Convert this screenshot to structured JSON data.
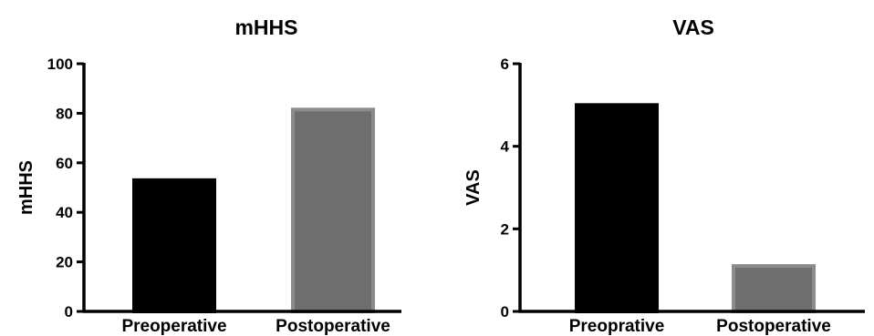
{
  "chart_data": [
    {
      "type": "bar",
      "title": "mHHS",
      "xlabel": "",
      "ylabel": "mHHS",
      "categories": [
        "Preoperative",
        "Postoperative"
      ],
      "values": [
        53,
        81.5
      ],
      "ylim": [
        0,
        100
      ],
      "yticks": [
        0,
        20,
        40,
        60,
        80,
        100
      ],
      "bar_colors": [
        "#000000",
        "#6e6e6e"
      ],
      "bar_edge_colors": [
        "#000000",
        "#8c8c8c"
      ],
      "grid": false,
      "legend": "none"
    },
    {
      "type": "bar",
      "title": "VAS",
      "xlabel": "",
      "ylabel": "VAS",
      "categories": [
        "Preoprative",
        "Postoperative"
      ],
      "values": [
        5.0,
        1.1
      ],
      "ylim": [
        0,
        6
      ],
      "yticks": [
        0,
        2,
        4,
        6
      ],
      "bar_colors": [
        "#000000",
        "#6e6e6e"
      ],
      "bar_edge_colors": [
        "#000000",
        "#8c8c8c"
      ],
      "grid": false,
      "legend": "none"
    }
  ]
}
